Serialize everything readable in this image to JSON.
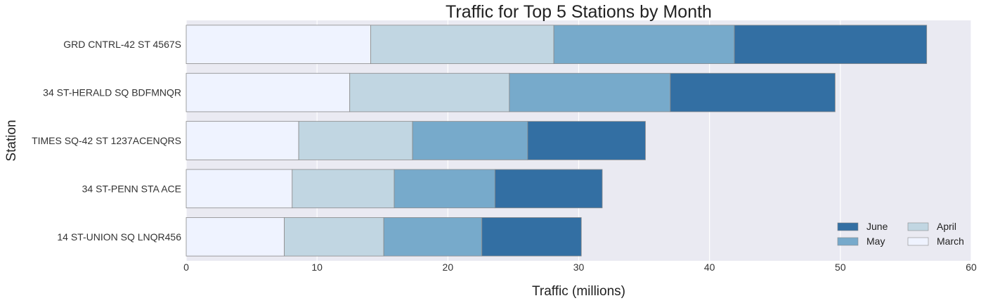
{
  "chart_data": {
    "type": "bar",
    "orientation": "horizontal",
    "stacked": true,
    "title": "Traffic for Top 5 Stations by Month",
    "xlabel": "Traffic (millions)",
    "ylabel": "Station",
    "xlim": [
      0,
      60
    ],
    "xticks": [
      0,
      10,
      20,
      30,
      40,
      50,
      60
    ],
    "grid": true,
    "legend_position": "bottom-right",
    "categories": [
      "GRD CNTRL-42 ST 4567S",
      "34 ST-HERALD SQ BDFMNQR",
      "TIMES SQ-42 ST 1237ACENQRS",
      "34 ST-PENN STA ACE",
      "14 ST-UNION SQ LNQR456"
    ],
    "series": [
      {
        "name": "March",
        "color": "#eff3ff",
        "values": [
          14.1,
          12.5,
          8.6,
          8.1,
          7.5
        ]
      },
      {
        "name": "April",
        "color": "#c1d6e2",
        "values": [
          14.0,
          12.2,
          8.7,
          7.8,
          7.6
        ]
      },
      {
        "name": "May",
        "color": "#77aacb",
        "values": [
          13.8,
          12.3,
          8.8,
          7.7,
          7.5
        ]
      },
      {
        "name": "June",
        "color": "#336fa3",
        "values": [
          14.7,
          12.6,
          9.0,
          8.2,
          7.6
        ]
      }
    ],
    "legend_order": [
      "June",
      "May",
      "April",
      "March"
    ]
  },
  "colors": {
    "plot_background": "#eaeaf2",
    "grid": "#ffffff",
    "bar_edge": "#8a8a8a"
  }
}
